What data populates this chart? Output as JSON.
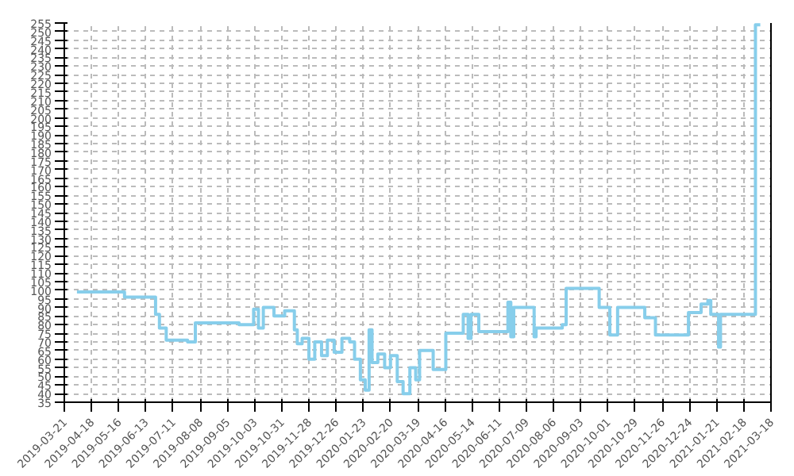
{
  "chart_data": {
    "type": "step",
    "color": "#87ceeb",
    "x": [
      "2019-04-03",
      "2019-05-22",
      "2019-06-23",
      "2019-06-27",
      "2019-07-04",
      "2019-07-26",
      "2019-08-03",
      "2019-09-17",
      "2019-10-02",
      "2019-10-07",
      "2019-10-12",
      "2019-10-23",
      "2019-11-03",
      "2019-11-13",
      "2019-11-16",
      "2019-11-21",
      "2019-11-28",
      "2019-12-04",
      "2019-12-11",
      "2019-12-17",
      "2019-12-24",
      "2020-01-01",
      "2020-01-09",
      "2020-01-14",
      "2020-01-20",
      "2020-01-25",
      "2020-01-29",
      "2020-02-01",
      "2020-02-07",
      "2020-02-14",
      "2020-02-20",
      "2020-02-27",
      "2020-03-04",
      "2020-03-11",
      "2020-03-17",
      "2020-03-21",
      "2020-04-04",
      "2020-04-17",
      "2020-05-05",
      "2020-05-10",
      "2020-05-13",
      "2020-05-21",
      "2020-06-20",
      "2020-06-23",
      "2020-06-26",
      "2020-07-17",
      "2020-07-19",
      "2020-08-15",
      "2020-08-19",
      "2020-09-22",
      "2020-10-03",
      "2020-10-11",
      "2020-11-08",
      "2020-11-19",
      "2020-12-23",
      "2021-01-05",
      "2021-01-12",
      "2021-01-15",
      "2021-01-23",
      "2021-01-25",
      "2021-03-02",
      "2021-03-07"
    ],
    "values": [
      99,
      96,
      86,
      78,
      71,
      70,
      81,
      80,
      89,
      78,
      90,
      85,
      88,
      77,
      69,
      72,
      60,
      70,
      62,
      71,
      64,
      72,
      70,
      60,
      48,
      42,
      77,
      58,
      63,
      55,
      62,
      47,
      40,
      55,
      48,
      65,
      54,
      75,
      86,
      72,
      86,
      76,
      93,
      73,
      90,
      73,
      78,
      80,
      101,
      90,
      74,
      90,
      84,
      74,
      87,
      92,
      94,
      86,
      67,
      86,
      254,
      254
    ],
    "xlim": [
      "2019-03-21",
      "2021-03-18"
    ],
    "xticks": [
      "2019-03-21",
      "2019-04-18",
      "2019-05-16",
      "2019-06-13",
      "2019-07-11",
      "2019-08-08",
      "2019-09-05",
      "2019-10-03",
      "2019-10-31",
      "2019-11-28",
      "2019-12-26",
      "2020-01-23",
      "2020-02-20",
      "2020-03-19",
      "2020-04-16",
      "2020-05-14",
      "2020-06-11",
      "2020-07-09",
      "2020-08-06",
      "2020-09-03",
      "2020-10-01",
      "2020-10-29",
      "2020-11-26",
      "2020-12-24",
      "2021-01-21",
      "2021-02-18",
      "2021-03-18"
    ],
    "ylim": [
      35,
      255
    ],
    "yticks": [
      35,
      40,
      45,
      50,
      55,
      60,
      65,
      70,
      75,
      80,
      85,
      90,
      95,
      100,
      105,
      110,
      115,
      120,
      125,
      130,
      135,
      140,
      145,
      150,
      155,
      160,
      165,
      170,
      175,
      180,
      185,
      190,
      195,
      200,
      205,
      210,
      215,
      220,
      225,
      230,
      235,
      240,
      245,
      250,
      255
    ],
    "grid": true
  }
}
